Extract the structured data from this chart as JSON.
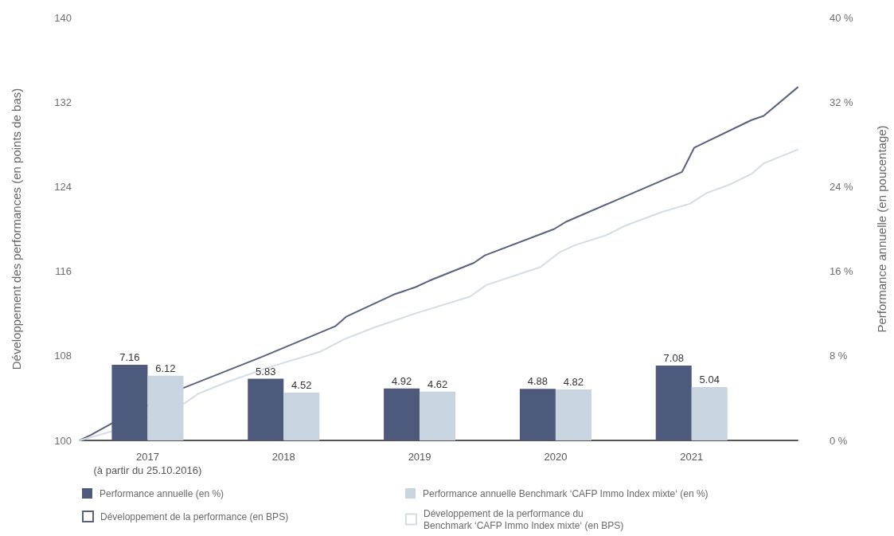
{
  "chart_data": {
    "type": "bar",
    "x": [
      2017,
      2018,
      2019,
      2020,
      2021
    ],
    "series": [
      {
        "name": "Performance annuelle (en %)",
        "color": "#4e5a7c",
        "axis": "y2",
        "values": [
          7.16,
          5.83,
          4.92,
          4.88,
          7.08
        ],
        "value_labels": [
          "7.16",
          "5.83",
          "4.92",
          "4.88",
          "7.08"
        ]
      },
      {
        "name": "Performance annuelle Benchmark ‘CAFP Immo Index mixte‘ (en %)",
        "color": "#c8d4e0",
        "axis": "y2",
        "values": [
          6.12,
          4.52,
          4.62,
          4.82,
          5.04
        ],
        "value_labels": [
          "6.12",
          "4.52",
          "4.62",
          "4.82",
          "5.04"
        ]
      },
      {
        "name": "Développement de la performance (en BPS)",
        "type": "line",
        "color": "#56627f",
        "x": [
          2016.5,
          2016.58,
          2016.75,
          2017.27,
          2017.84,
          2018.38,
          2018.46,
          2018.81,
          2018.97,
          2019.07,
          2019.4,
          2019.48,
          2019.99,
          2020.08,
          2020.93,
          2021.02,
          2021.44,
          2021.53,
          2021.78
        ],
        "values": [
          100,
          100.5,
          101.7,
          105.0,
          107.9,
          110.8,
          111.7,
          113.8,
          114.5,
          115.1,
          116.8,
          117.5,
          120.0,
          120.7,
          125.4,
          127.7,
          130.3,
          130.7,
          133.4
        ]
      },
      {
        "name": "Développement de la performance du Benchmark ‘CAFP Immo Index mixte‘ (en BPS)",
        "type": "line",
        "color": "#d3dde8",
        "x": [
          2016.5,
          2016.75,
          2017.27,
          2017.37,
          2017.58,
          2017.89,
          2018.27,
          2018.45,
          2018.67,
          2018.99,
          2019.37,
          2019.49,
          2019.89,
          2020.03,
          2020.15,
          2020.37,
          2020.51,
          2020.78,
          2020.99,
          2021.11,
          2021.28,
          2021.44,
          2021.53,
          2021.78
        ],
        "values": [
          100,
          100.9,
          103.5,
          104.4,
          105.5,
          106.9,
          108.4,
          109.6,
          110.7,
          112.1,
          113.6,
          114.7,
          116.4,
          117.8,
          118.5,
          119.4,
          120.3,
          121.6,
          122.4,
          123.4,
          124.2,
          125.2,
          126.2,
          127.5
        ]
      }
    ],
    "ylabel": "Développement des performances (en points de bas)",
    "y2label": "Performance annuelle (en poucentage)",
    "xlim": [
      2016.5,
      2021.78
    ],
    "xticks": [
      {
        "value": 2017,
        "label": "2017\n(à partir du 25.10.2016)"
      },
      2018,
      2019,
      2020,
      2021
    ],
    "ylim": [
      100,
      140
    ],
    "yticks": [
      100,
      108,
      116,
      124,
      132,
      140
    ],
    "y2lim": [
      0,
      40
    ],
    "y2ticks": [
      {
        "value": 0,
        "label": "0 %"
      },
      {
        "value": 8,
        "label": "8 %"
      },
      {
        "value": 16,
        "label": "16 %"
      },
      {
        "value": 24,
        "label": "24 %"
      },
      {
        "value": 32,
        "label": "32 %"
      },
      {
        "value": 40,
        "label": "40 %"
      }
    ],
    "legend": "bottom",
    "marker": "none",
    "line_style": "solid",
    "grid": false
  }
}
